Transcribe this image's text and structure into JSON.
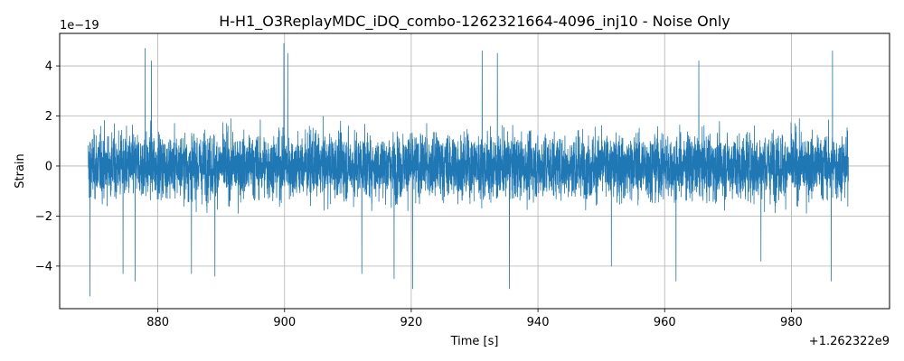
{
  "chart_data": {
    "type": "line",
    "title": "H-H1_O3ReplayMDC_iDQ_combo-1262321664-4096_inj10 - Noise Only",
    "xlabel": "Time [s]",
    "ylabel": "Strain",
    "x_offset_label": "+1.262322e9",
    "y_exponent_label": "1e−19",
    "xlim": [
      864.5,
      995.5
    ],
    "ylim": [
      -5.7,
      5.3
    ],
    "x_ticks": [
      880,
      900,
      920,
      940,
      960,
      980
    ],
    "x_tick_labels": [
      "880",
      "900",
      "920",
      "940",
      "960",
      "980"
    ],
    "y_ticks": [
      -4,
      -2,
      0,
      2,
      4
    ],
    "y_tick_labels": [
      "−4",
      "−2",
      "0",
      "2",
      "4"
    ],
    "grid": true,
    "line_color": "#1f77b4",
    "series": [
      {
        "x_range": [
          869.0,
          989.0
        ],
        "noise_std": 1.0,
        "envelope_extremes": [
          {
            "x": 869.3,
            "y": -5.2
          },
          {
            "x": 874.5,
            "y": -4.3
          },
          {
            "x": 876.4,
            "y": -4.6
          },
          {
            "x": 878.0,
            "y": 4.7
          },
          {
            "x": 879.0,
            "y": 4.2
          },
          {
            "x": 885.3,
            "y": -4.3
          },
          {
            "x": 889.0,
            "y": -4.4
          },
          {
            "x": 899.9,
            "y": 4.9
          },
          {
            "x": 900.5,
            "y": 4.5
          },
          {
            "x": 912.2,
            "y": -4.3
          },
          {
            "x": 917.3,
            "y": -4.5
          },
          {
            "x": 920.2,
            "y": -4.9
          },
          {
            "x": 931.2,
            "y": 4.6
          },
          {
            "x": 933.6,
            "y": 4.5
          },
          {
            "x": 935.5,
            "y": -4.9
          },
          {
            "x": 951.6,
            "y": -4.0
          },
          {
            "x": 961.8,
            "y": -4.6
          },
          {
            "x": 965.4,
            "y": 4.2
          },
          {
            "x": 975.2,
            "y": -3.8
          },
          {
            "x": 986.3,
            "y": -4.6
          },
          {
            "x": 986.5,
            "y": 4.6
          }
        ]
      }
    ]
  }
}
